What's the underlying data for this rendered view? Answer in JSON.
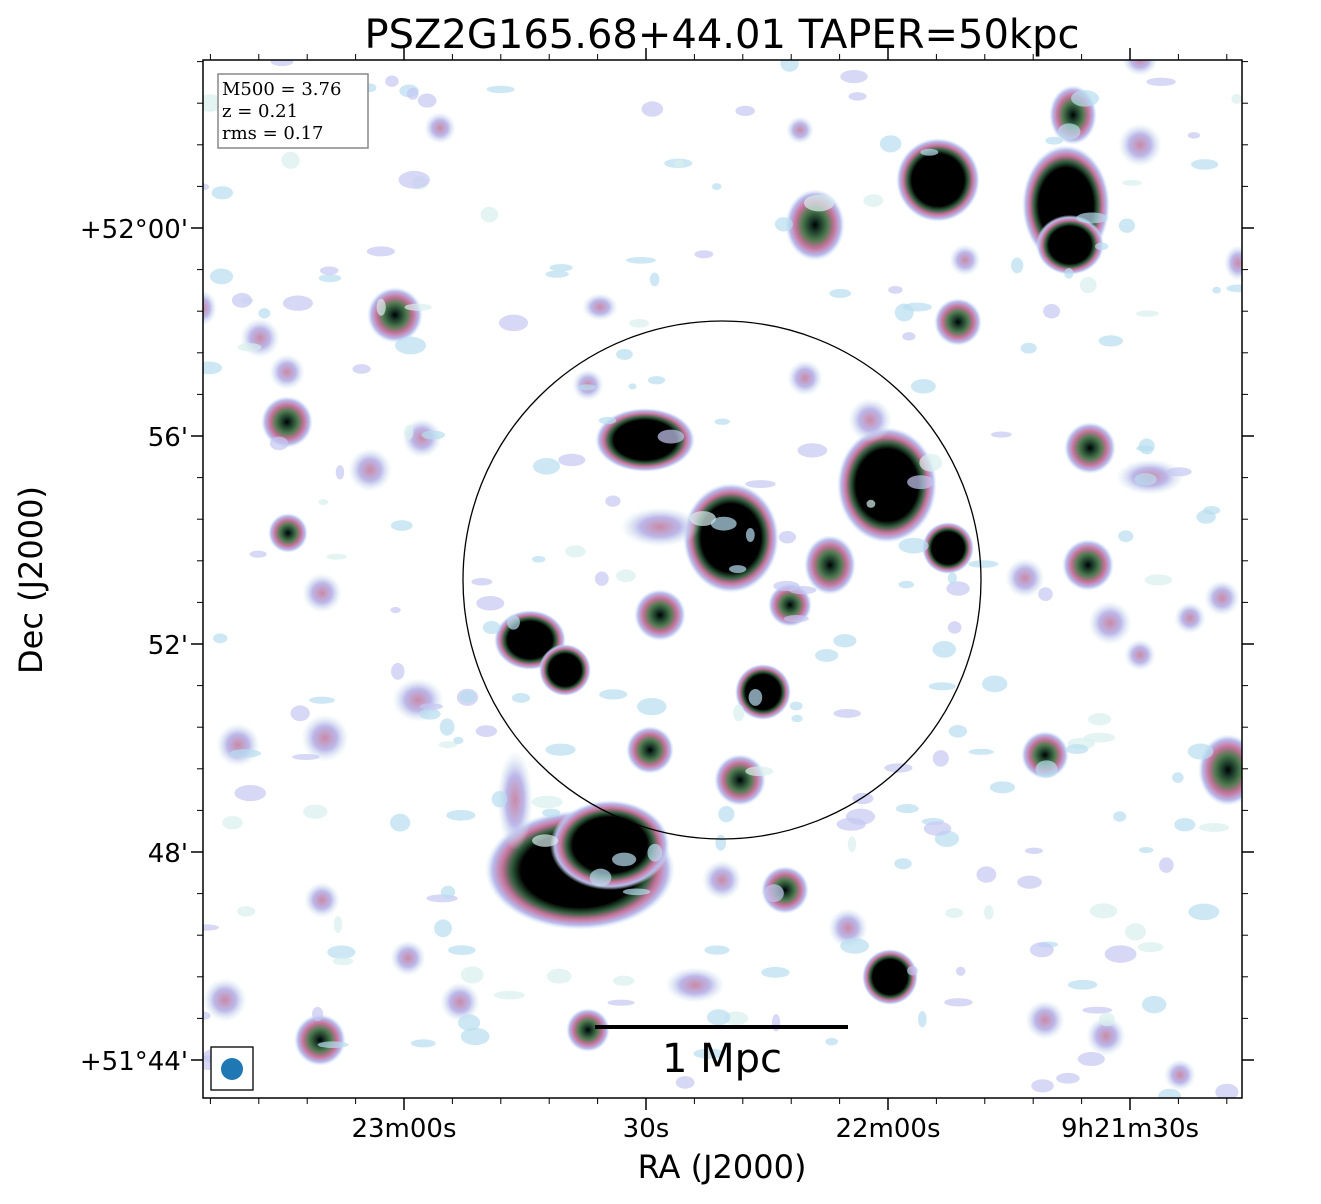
{
  "title": "PSZ2G165.68+44.01 TAPER=50kpc",
  "info": [
    "M500 = 3.76",
    "z = 0.21",
    "rms = 0.17"
  ],
  "x_axis": {
    "label": "RA (J2000)",
    "ticks": [
      "23m00s",
      "30s",
      "22m00s",
      "9h21m30s"
    ]
  },
  "y_axis": {
    "label": "Dec (J2000)",
    "ticks": [
      "+52°00'",
      "56'",
      "52'",
      "48'",
      "+51°44'"
    ]
  },
  "scale_bar": "1 Mpc"
}
